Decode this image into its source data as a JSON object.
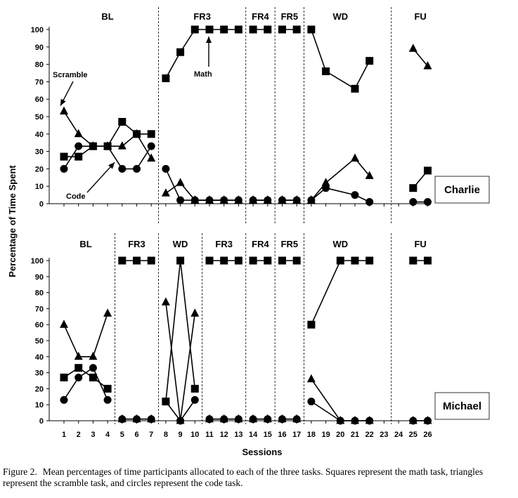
{
  "caption": {
    "label": "Figure 2.",
    "text": "Mean percentages of time participants allocated to each of the three tasks. Squares represent the math task, triangles represent the scramble task, and circles represent the code task."
  },
  "y_axis_title": "Percentage of Time Spent",
  "x_axis_title": "Sessions",
  "chart_data": [
    {
      "type": "line",
      "participant": "Charlie",
      "ylabel": "Percentage of Time Spent",
      "ylim": [
        0,
        100
      ],
      "yticks": [
        0,
        10,
        20,
        30,
        40,
        50,
        60,
        70,
        80,
        90,
        100
      ],
      "x": [
        1,
        2,
        3,
        4,
        5,
        6,
        7,
        8,
        9,
        10,
        11,
        12,
        13,
        14,
        15,
        16,
        17,
        18,
        19,
        20,
        21,
        22,
        23,
        24,
        25,
        26
      ],
      "phases": [
        {
          "label": "BL",
          "start": 1,
          "end": 7
        },
        {
          "label": "FR3",
          "start": 8,
          "end": 13
        },
        {
          "label": "FR4",
          "start": 14,
          "end": 15
        },
        {
          "label": "FR5",
          "start": 16,
          "end": 17
        },
        {
          "label": "WD",
          "start": 18,
          "end": 22
        },
        {
          "label": "FU",
          "start": 25,
          "end": 26
        }
      ],
      "series": [
        {
          "name": "Math",
          "marker": "square",
          "segments": [
            [
              [
                1,
                27
              ],
              [
                2,
                27
              ],
              [
                3,
                33
              ],
              [
                4,
                33
              ],
              [
                5,
                47
              ],
              [
                6,
                40
              ],
              [
                7,
                40
              ]
            ],
            [
              [
                8,
                72
              ],
              [
                9,
                87
              ],
              [
                10,
                100
              ],
              [
                11,
                100
              ],
              [
                12,
                100
              ],
              [
                13,
                100
              ]
            ],
            [
              [
                14,
                100
              ],
              [
                15,
                100
              ]
            ],
            [
              [
                16,
                100
              ],
              [
                17,
                100
              ]
            ],
            [
              [
                18,
                100
              ],
              [
                19,
                76
              ],
              [
                21,
                66
              ],
              [
                22,
                82
              ]
            ],
            [
              [
                25,
                9
              ],
              [
                26,
                19
              ]
            ]
          ]
        },
        {
          "name": "Scramble",
          "marker": "triangle",
          "segments": [
            [
              [
                1,
                53
              ],
              [
                2,
                40
              ],
              [
                3,
                33
              ],
              [
                4,
                33
              ],
              [
                5,
                33
              ],
              [
                6,
                40
              ],
              [
                7,
                26
              ]
            ],
            [
              [
                8,
                6
              ],
              [
                9,
                12
              ],
              [
                10,
                2
              ],
              [
                11,
                2
              ],
              [
                12,
                2
              ],
              [
                13,
                2
              ]
            ],
            [
              [
                14,
                2
              ],
              [
                15,
                2
              ]
            ],
            [
              [
                16,
                2
              ],
              [
                17,
                2
              ]
            ],
            [
              [
                18,
                2
              ],
              [
                19,
                12
              ],
              [
                21,
                26
              ],
              [
                22,
                16
              ]
            ],
            [
              [
                25,
                89
              ],
              [
                26,
                79
              ]
            ]
          ]
        },
        {
          "name": "Code",
          "marker": "circle",
          "segments": [
            [
              [
                1,
                20
              ],
              [
                2,
                33
              ],
              [
                3,
                33
              ],
              [
                4,
                33
              ],
              [
                5,
                20
              ],
              [
                6,
                20
              ],
              [
                7,
                33
              ]
            ],
            [
              [
                8,
                20
              ],
              [
                9,
                2
              ],
              [
                10,
                2
              ],
              [
                11,
                2
              ],
              [
                12,
                2
              ],
              [
                13,
                2
              ]
            ],
            [
              [
                14,
                2
              ],
              [
                15,
                2
              ]
            ],
            [
              [
                16,
                2
              ],
              [
                17,
                2
              ]
            ],
            [
              [
                18,
                2
              ],
              [
                19,
                9
              ],
              [
                21,
                5
              ],
              [
                22,
                1
              ]
            ],
            [
              [
                25,
                1
              ],
              [
                26,
                1
              ]
            ]
          ]
        }
      ],
      "annotations": {
        "scramble": "Scramble",
        "code": "Code",
        "math": "Math"
      }
    },
    {
      "type": "line",
      "participant": "Michael",
      "xlabel": "Sessions",
      "ylim": [
        0,
        100
      ],
      "yticks": [
        0,
        10,
        20,
        30,
        40,
        50,
        60,
        70,
        80,
        90,
        100
      ],
      "x": [
        1,
        2,
        3,
        4,
        5,
        6,
        7,
        8,
        9,
        10,
        11,
        12,
        13,
        14,
        15,
        16,
        17,
        18,
        19,
        20,
        21,
        22,
        23,
        24,
        25,
        26
      ],
      "phases": [
        {
          "label": "BL",
          "start": 1,
          "end": 4
        },
        {
          "label": "FR3",
          "start": 5,
          "end": 7
        },
        {
          "label": "WD",
          "start": 8,
          "end": 10
        },
        {
          "label": "FR3",
          "start": 11,
          "end": 13
        },
        {
          "label": "FR4",
          "start": 14,
          "end": 15
        },
        {
          "label": "FR5",
          "start": 16,
          "end": 17
        },
        {
          "label": "WD",
          "start": 18,
          "end": 22
        },
        {
          "label": "FU",
          "start": 25,
          "end": 26
        }
      ],
      "series": [
        {
          "name": "Math",
          "marker": "square",
          "segments": [
            [
              [
                1,
                27
              ],
              [
                2,
                33
              ],
              [
                3,
                27
              ],
              [
                4,
                20
              ]
            ],
            [
              [
                5,
                100
              ],
              [
                6,
                100
              ],
              [
                7,
                100
              ]
            ],
            [
              [
                8,
                12
              ],
              [
                9,
                100
              ],
              [
                10,
                20
              ]
            ],
            [
              [
                11,
                100
              ],
              [
                12,
                100
              ],
              [
                13,
                100
              ]
            ],
            [
              [
                14,
                100
              ],
              [
                15,
                100
              ]
            ],
            [
              [
                16,
                100
              ],
              [
                17,
                100
              ]
            ],
            [
              [
                18,
                60
              ],
              [
                20,
                100
              ],
              [
                21,
                100
              ],
              [
                22,
                100
              ]
            ],
            [
              [
                25,
                100
              ],
              [
                26,
                100
              ]
            ]
          ]
        },
        {
          "name": "Scramble",
          "marker": "triangle",
          "segments": [
            [
              [
                1,
                60
              ],
              [
                2,
                40
              ],
              [
                3,
                40
              ],
              [
                4,
                67
              ]
            ],
            [
              [
                5,
                1
              ],
              [
                6,
                1
              ],
              [
                7,
                1
              ]
            ],
            [
              [
                8,
                74
              ],
              [
                9,
                0
              ],
              [
                10,
                67
              ]
            ],
            [
              [
                11,
                1
              ],
              [
                12,
                1
              ],
              [
                13,
                1
              ]
            ],
            [
              [
                14,
                1
              ],
              [
                15,
                1
              ]
            ],
            [
              [
                16,
                1
              ],
              [
                17,
                1
              ]
            ],
            [
              [
                18,
                26
              ],
              [
                20,
                0
              ],
              [
                21,
                0
              ],
              [
                22,
                0
              ]
            ],
            [
              [
                25,
                0
              ],
              [
                26,
                0
              ]
            ]
          ]
        },
        {
          "name": "Code",
          "marker": "circle",
          "segments": [
            [
              [
                1,
                13
              ],
              [
                2,
                27
              ],
              [
                3,
                33
              ],
              [
                4,
                13
              ]
            ],
            [
              [
                5,
                1
              ],
              [
                6,
                1
              ],
              [
                7,
                1
              ]
            ],
            [
              [
                8,
                12
              ],
              [
                9,
                0
              ],
              [
                10,
                13
              ]
            ],
            [
              [
                11,
                1
              ],
              [
                12,
                1
              ],
              [
                13,
                1
              ]
            ],
            [
              [
                14,
                1
              ],
              [
                15,
                1
              ]
            ],
            [
              [
                16,
                1
              ],
              [
                17,
                1
              ]
            ],
            [
              [
                18,
                12
              ],
              [
                20,
                0
              ],
              [
                21,
                0
              ],
              [
                22,
                0
              ]
            ],
            [
              [
                25,
                0
              ],
              [
                26,
                0
              ]
            ]
          ]
        }
      ]
    }
  ]
}
